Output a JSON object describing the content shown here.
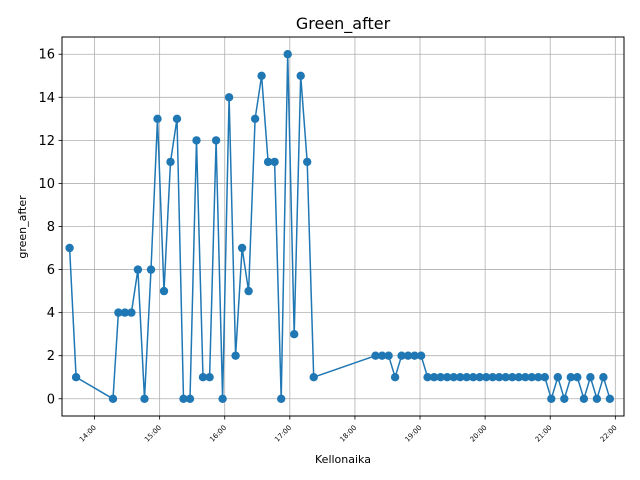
{
  "chart_data": {
    "type": "line",
    "title": "Green_after",
    "xlabel": "Kellonaika",
    "ylabel": "green_after",
    "x_tick_labels": [
      "14:00",
      "15:00",
      "16:00",
      "17:00",
      "18:00",
      "19:00",
      "20:00",
      "21:00",
      "22:00"
    ],
    "y_ticks": [
      0,
      2,
      4,
      6,
      8,
      10,
      12,
      14,
      16
    ],
    "xlim": [
      "13:30",
      "22:08"
    ],
    "ylim": [
      -0.8,
      16.8
    ],
    "grid": true,
    "marker": "circle",
    "color": "#1f77b4",
    "series": [
      {
        "x": [
          "13:37",
          "13:43",
          "14:17",
          "14:22",
          "14:28",
          "14:34",
          "14:40",
          "14:46",
          "14:52",
          "14:58",
          "15:04",
          "15:10",
          "15:16",
          "15:22",
          "15:28",
          "15:34",
          "15:40",
          "15:46",
          "15:52",
          "15:58",
          "16:04",
          "16:10",
          "16:16",
          "16:22",
          "16:28",
          "16:34",
          "16:40",
          "16:46",
          "16:52",
          "16:58",
          "17:04",
          "17:10",
          "17:16",
          "17:22",
          "18:19",
          "18:25",
          "18:31",
          "18:37",
          "18:43",
          "18:49",
          "18:55",
          "19:01",
          "19:07",
          "19:13",
          "19:19",
          "19:25",
          "19:31",
          "19:37",
          "19:43",
          "19:49",
          "19:55",
          "20:01",
          "20:07",
          "20:13",
          "20:19",
          "20:25",
          "20:31",
          "20:37",
          "20:43",
          "20:49",
          "20:55",
          "21:01",
          "21:07",
          "21:13",
          "21:19",
          "21:25",
          "21:31",
          "21:37",
          "21:43",
          "21:49",
          "21:55"
        ],
        "y": [
          7,
          1,
          0,
          4,
          4,
          4,
          6,
          0,
          6,
          13,
          5,
          11,
          13,
          0,
          0,
          12,
          1,
          1,
          12,
          0,
          14,
          2,
          7,
          5,
          13,
          15,
          11,
          11,
          0,
          16,
          3,
          15,
          11,
          1,
          2,
          2,
          2,
          1,
          2,
          2,
          2,
          2,
          1,
          1,
          1,
          1,
          1,
          1,
          1,
          1,
          1,
          1,
          1,
          1,
          1,
          1,
          1,
          1,
          1,
          1,
          1,
          0,
          1,
          0,
          1,
          1,
          0,
          1,
          0,
          1,
          0
        ]
      }
    ]
  }
}
